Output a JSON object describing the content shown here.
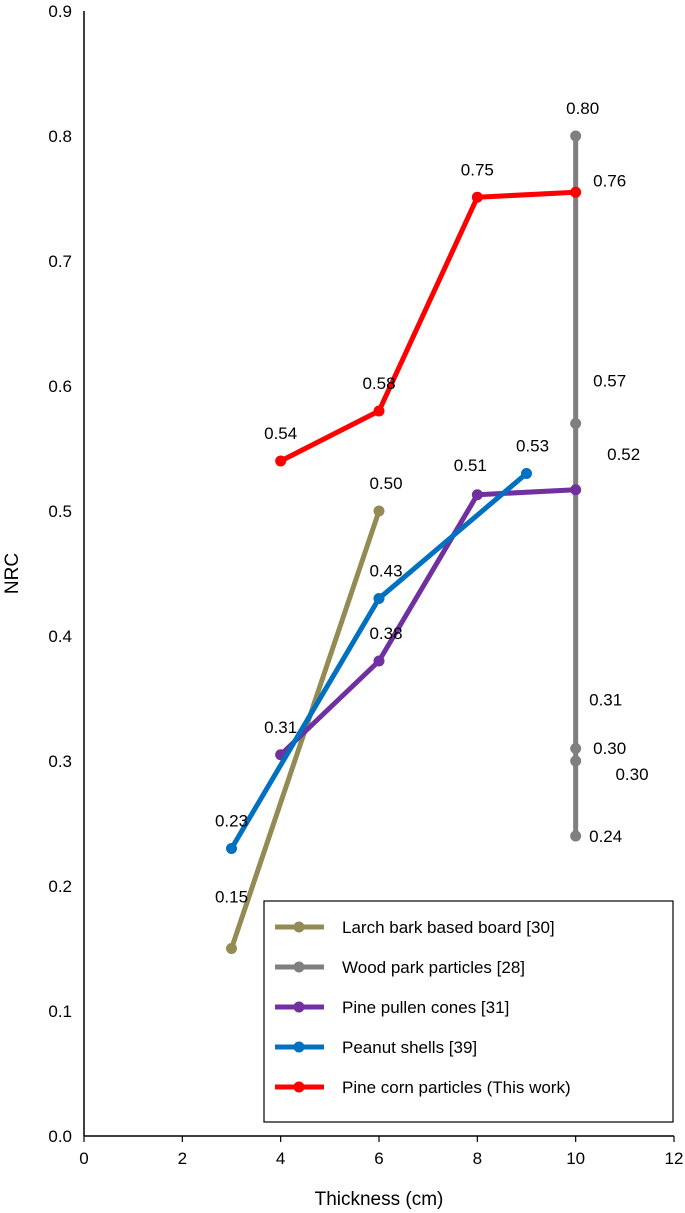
{
  "chart_data": {
    "type": "line",
    "xlabel": "Thickness (cm)",
    "ylabel": "NRC",
    "xlim": [
      0,
      12
    ],
    "ylim": [
      0,
      0.9
    ],
    "x_ticks": [
      "0",
      "2",
      "4",
      "6",
      "8",
      "10",
      "12"
    ],
    "y_ticks": [
      "0.0",
      "0.1",
      "0.2",
      "0.3",
      "0.4",
      "0.5",
      "0.6",
      "0.7",
      "0.8",
      "0.9"
    ],
    "grid": false,
    "legend_position": "bottom-right",
    "series": [
      {
        "name": "Larch bark based board [30]",
        "color": "#948A54",
        "points": [
          {
            "x": 3,
            "y": 0.15,
            "label": "0.15"
          },
          {
            "x": 6,
            "y": 0.5,
            "label": "0.50"
          }
        ]
      },
      {
        "name": "Wood park particles [28]",
        "color": "#7F7F7F",
        "points": [
          {
            "x": 10,
            "y": 0.8,
            "label": "0.80"
          },
          {
            "x": 10,
            "y": 0.57,
            "label": "0.57"
          },
          {
            "x": 10,
            "y": 0.31,
            "label": "0.31"
          },
          {
            "x": 10,
            "y": 0.3,
            "label": "0.30"
          },
          {
            "x": 10,
            "y": 0.24,
            "label": "0.24"
          }
        ],
        "extra_labels": [
          "0.30"
        ]
      },
      {
        "name": "Pine pullen cones [31]",
        "color": "#7030A0",
        "points": [
          {
            "x": 4,
            "y": 0.305,
            "label": "0.31"
          },
          {
            "x": 6,
            "y": 0.38,
            "label": "0.38"
          },
          {
            "x": 8,
            "y": 0.513,
            "label": "0.51"
          },
          {
            "x": 10,
            "y": 0.517,
            "label": "0.52"
          }
        ]
      },
      {
        "name": "Peanut shells [39]",
        "color": "#0070C0",
        "points": [
          {
            "x": 3,
            "y": 0.23,
            "label": "0.23"
          },
          {
            "x": 6,
            "y": 0.43,
            "label": "0.43"
          },
          {
            "x": 9,
            "y": 0.53,
            "label": "0.53"
          }
        ]
      },
      {
        "name": "Pine corn particles (This work)",
        "color": "#FF0000",
        "points": [
          {
            "x": 4,
            "y": 0.54,
            "label": "0.54"
          },
          {
            "x": 6,
            "y": 0.58,
            "label": "0.58"
          },
          {
            "x": 8,
            "y": 0.751,
            "label": "0.75"
          },
          {
            "x": 10,
            "y": 0.755,
            "label": "0.76"
          }
        ]
      }
    ]
  }
}
